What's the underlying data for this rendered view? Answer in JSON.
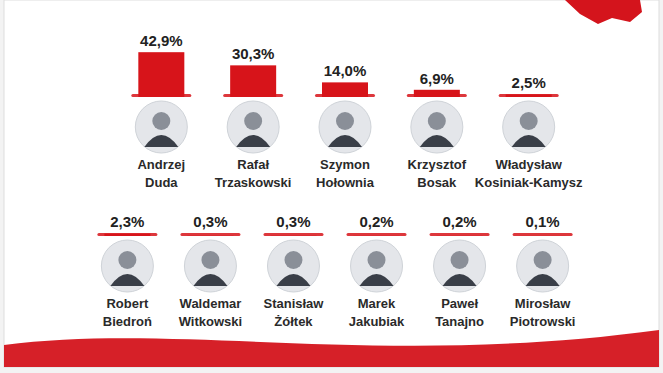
{
  "chart_data": {
    "type": "bar",
    "categories": [
      "Andrzej Duda",
      "Rafał Trzaskowski",
      "Szymon Hołownia",
      "Krzysztof Bosak",
      "Władysław Kosiniak-Kamysz",
      "Robert Biedroń",
      "Waldemar Witkowski",
      "Stanisław Żółtek",
      "Marek Jakubiak",
      "Paweł Tanajno",
      "Mirosław Piotrowski"
    ],
    "values": [
      42.9,
      30.3,
      14.0,
      6.9,
      2.5,
      2.3,
      0.3,
      0.3,
      0.2,
      0.2,
      0.1
    ],
    "value_labels": [
      "42,9%",
      "30,3%",
      "14,0%",
      "6,9%",
      "2,5%",
      "2,3%",
      "0,3%",
      "0,3%",
      "0,2%",
      "0,2%",
      "0,1%"
    ],
    "color": "#d7141a",
    "ylim": [
      0,
      45
    ],
    "data_labels": true,
    "tick_labels": false
  }
}
